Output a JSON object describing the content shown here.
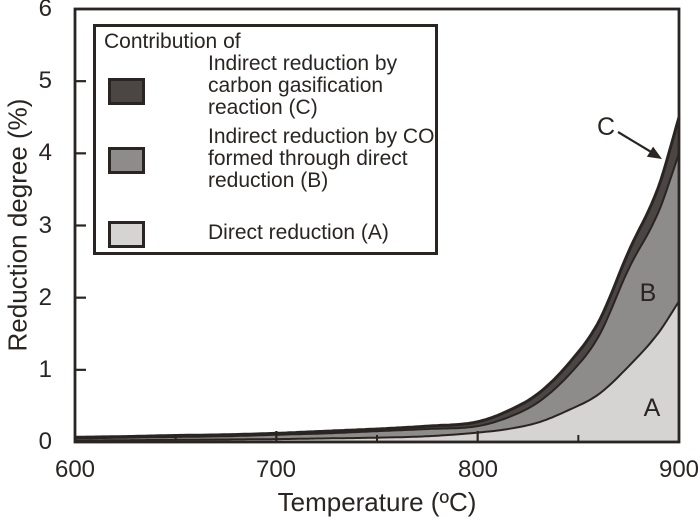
{
  "figure": {
    "y_axis_title": "Reduction degree (%)",
    "x_axis_title": "Temperature (ºC)",
    "x_tick_labels": [
      "600",
      "700",
      "800",
      "900"
    ],
    "y_tick_labels": [
      "0",
      "1",
      "2",
      "3",
      "4",
      "5",
      "6"
    ],
    "annotations": {
      "a": "A",
      "b": "B",
      "c": "C"
    }
  },
  "legend": {
    "title": "Contribution of",
    "entries": [
      {
        "key": "C",
        "swatch_color": "#4b4544",
        "lines": [
          "Indirect reduction by",
          "carbon gasification",
          "reaction (C)"
        ]
      },
      {
        "key": "B",
        "swatch_color": "#8d8c8a",
        "lines": [
          "Indirect reduction by CO",
          "formed through direct",
          "reduction (B)"
        ]
      },
      {
        "key": "A",
        "swatch_color": "#d5d4d2",
        "lines": [
          "Direct reduction (A)"
        ]
      }
    ]
  },
  "chart_data": {
    "type": "area",
    "stacked": true,
    "title": "",
    "xlabel": "Temperature (ºC)",
    "ylabel": "Reduction degree (%)",
    "xlim": [
      600,
      900
    ],
    "ylim": [
      0,
      6
    ],
    "grid": false,
    "legend_position": "upper-left-box",
    "x_major_ticks": [
      600,
      700,
      800,
      900
    ],
    "x_minor_ticks": [
      650,
      750,
      850
    ],
    "y_major_ticks": [
      0,
      1,
      2,
      3,
      4,
      5,
      6
    ],
    "line_color": "#2a2522",
    "x": [
      600,
      625,
      650,
      675,
      700,
      725,
      750,
      775,
      800,
      815,
      830,
      845,
      860,
      875,
      890,
      900
    ],
    "series": [
      {
        "label": "A",
        "name": "Direct reduction (A)",
        "color": "#d5d4d2",
        "cumulative": [
          0.02,
          0.025,
          0.03,
          0.035,
          0.04,
          0.05,
          0.06,
          0.08,
          0.13,
          0.18,
          0.27,
          0.44,
          0.66,
          1.05,
          1.52,
          1.95
        ]
      },
      {
        "label": "B",
        "name": "Indirect reduction by CO formed through direct reduction (B)",
        "color": "#8d8c8a",
        "cumulative": [
          0.05,
          0.06,
          0.07,
          0.08,
          0.1,
          0.12,
          0.15,
          0.18,
          0.22,
          0.34,
          0.55,
          0.92,
          1.46,
          2.4,
          3.2,
          4.0
        ]
      },
      {
        "label": "C",
        "name": "Indirect reduction by carbon gasification reaction (C)",
        "color": "#4b4544",
        "cumulative": [
          0.065,
          0.075,
          0.09,
          0.1,
          0.12,
          0.15,
          0.18,
          0.22,
          0.28,
          0.43,
          0.67,
          1.08,
          1.66,
          2.64,
          3.55,
          4.5
        ]
      }
    ]
  }
}
